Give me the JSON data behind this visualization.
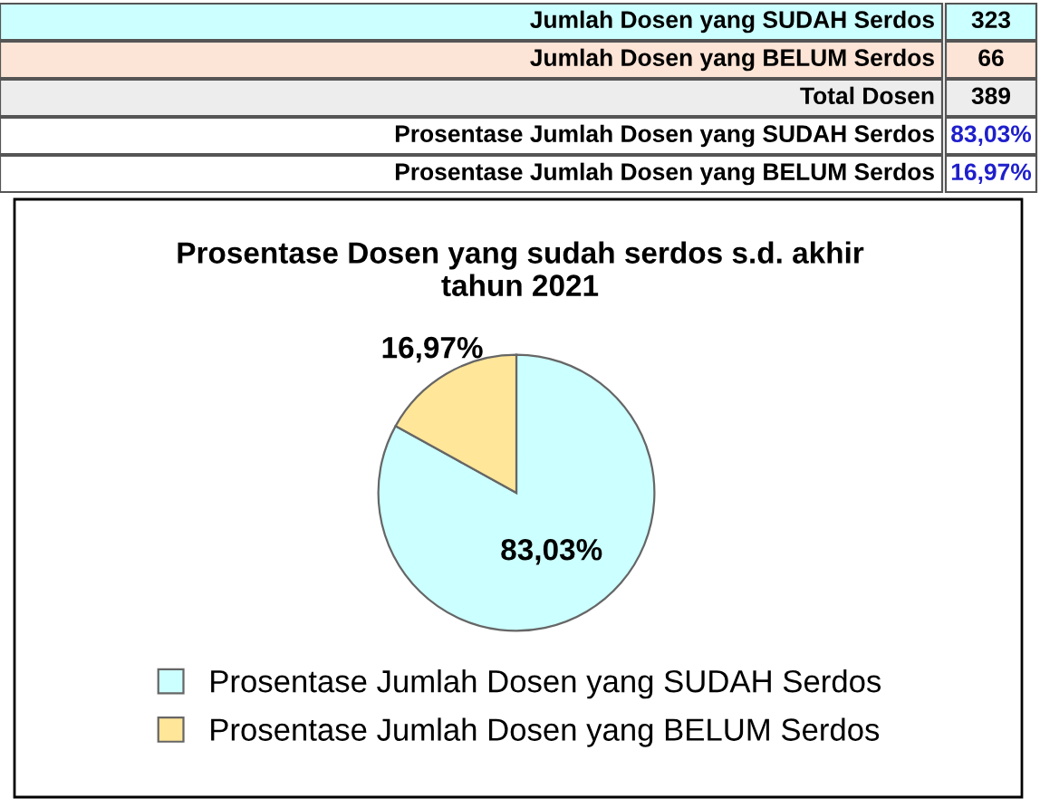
{
  "chart_data": {
    "type": "pie",
    "title": "Prosentase Dosen yang sudah serdos s.d. akhir tahun 2021",
    "categories": [
      "Prosentase Jumlah Dosen yang SUDAH Serdos",
      "Prosentase Jumlah Dosen yang BELUM Serdos"
    ],
    "values": [
      83.03,
      16.97
    ],
    "colors": [
      "#ccffff",
      "#ffe699"
    ],
    "value_labels": [
      "83,03%",
      "16,97%"
    ],
    "legend": "bottom",
    "annotations": [
      "Jumlah Dosen yang SUDAH Serdos",
      "323",
      "Jumlah Dosen yang BELUM Serdos",
      "66",
      "Total Dosen",
      "389",
      "Prosentase Jumlah Dosen yang SUDAH Serdos",
      "83,03%",
      "Prosentase Jumlah Dosen yang BELUM Serdos",
      "16,97%"
    ]
  }
}
